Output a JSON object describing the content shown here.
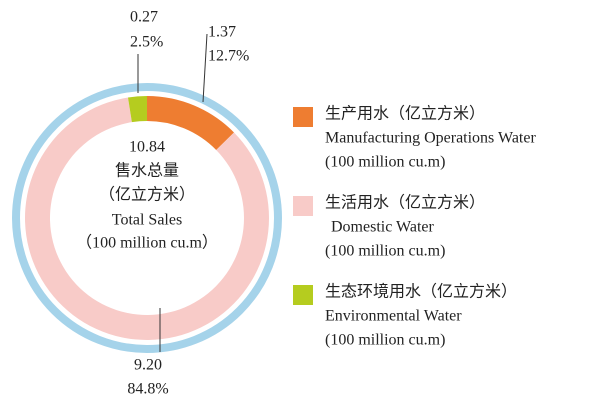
{
  "chart_data": {
    "type": "donut",
    "total": 10.84,
    "center_lines": [
      "售水总量",
      "（亿立方米）",
      "Total Sales",
      "（100 million cu.m）"
    ],
    "categories": [
      "生产用水（亿立方米）",
      "生活用水（亿立方米）",
      "生态环境用水（亿立方米）"
    ],
    "categories_en": [
      "Manufacturing Operations Water",
      "Domestic Water",
      "Environmental Water"
    ],
    "unit_labels": [
      "(100 million cu.m)",
      "(100 million cu.m)",
      "(100 million cu.m)"
    ],
    "values": [
      1.37,
      9.2,
      0.27
    ],
    "value_labels": [
      "1.37",
      "9.20",
      "0.27"
    ],
    "percentages": [
      12.7,
      84.8,
      2.5
    ],
    "percent_labels": [
      "12.7%",
      "84.8%",
      "2.5%"
    ],
    "colors": [
      "#ee7d31",
      "#f8cbc8",
      "#b5cc1f"
    ],
    "ring_color": "#a5d3ea"
  }
}
